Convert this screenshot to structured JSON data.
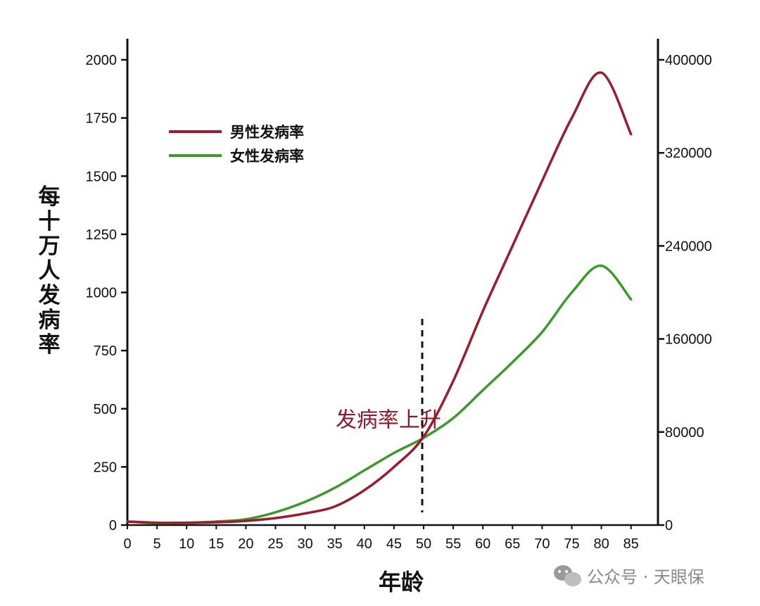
{
  "chart_data": {
    "type": "line",
    "xlabel": "年龄",
    "ylabel": "每十万人发病率",
    "xlim": [
      0,
      90
    ],
    "ylim": [
      0,
      2000
    ],
    "y2lim": [
      0,
      400000
    ],
    "x_ticks": [
      0,
      5,
      10,
      15,
      20,
      25,
      30,
      35,
      40,
      45,
      50,
      55,
      60,
      65,
      70,
      75,
      80,
      85
    ],
    "y_ticks": [
      0,
      250,
      500,
      750,
      1000,
      1250,
      1500,
      1750,
      2000
    ],
    "y2_ticks": [
      0,
      80000,
      160000,
      240000,
      320000,
      400000
    ],
    "legend_position": "top-left",
    "x": [
      0,
      5,
      10,
      15,
      20,
      25,
      30,
      35,
      40,
      45,
      50,
      55,
      60,
      65,
      70,
      75,
      80,
      85
    ],
    "series": [
      {
        "name": "男性发病率",
        "color": "#9b1b30",
        "values": [
          15,
          10,
          10,
          12,
          18,
          30,
          50,
          80,
          150,
          250,
          380,
          620,
          920,
          1200,
          1480,
          1750,
          1945,
          1680
        ]
      },
      {
        "name": "女性发病率",
        "color": "#3c9a2a",
        "values": [
          15,
          8,
          10,
          15,
          25,
          55,
          100,
          160,
          235,
          310,
          375,
          460,
          580,
          700,
          830,
          1000,
          1115,
          970
        ]
      }
    ],
    "annotations": [
      {
        "text": "发病率上升",
        "x": 45,
        "y": 470,
        "color": "#8b1a2b"
      }
    ],
    "reference_line": {
      "x": 50,
      "style": "dashed"
    }
  },
  "watermark": {
    "icon": "wechat-icon",
    "text": "公众号 · 天眼保"
  }
}
